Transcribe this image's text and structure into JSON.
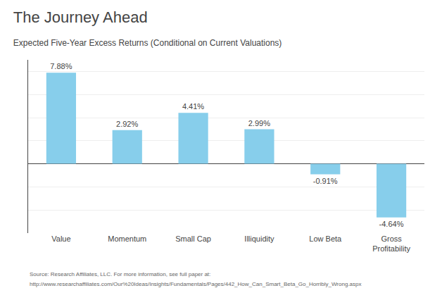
{
  "chart_data": {
    "type": "bar",
    "title": "The Journey Ahead",
    "subtitle": "Expected Five-Year Excess Returns (Conditional on Current Valuations)",
    "categories": [
      "Value",
      "Momentum",
      "Small Cap",
      "Illiquidity",
      "Low Beta",
      "Gross\nProfitability"
    ],
    "values": [
      7.88,
      2.92,
      4.41,
      2.99,
      -0.91,
      -4.64
    ],
    "value_labels": [
      "7.88%",
      "2.92%",
      "4.41%",
      "2.99%",
      "-0.91%",
      "-4.64%"
    ],
    "data_labels": true,
    "color": "#87CEEB",
    "ylim": [
      -6,
      9
    ],
    "yticks": [
      -6,
      -4,
      -2,
      0,
      2,
      4,
      6,
      8
    ],
    "grid": true,
    "tick_labels": "x",
    "annotations": [
      "Source: Research Affiliates, LLC. For more information, see full paper at:",
      "http://www.researchaffiliates.com/Our%20Ideas/Insights/Fundamentals/Pages/442_How_Can_Smart_Beta_Go_Horribly_Wrong.aspx"
    ]
  }
}
